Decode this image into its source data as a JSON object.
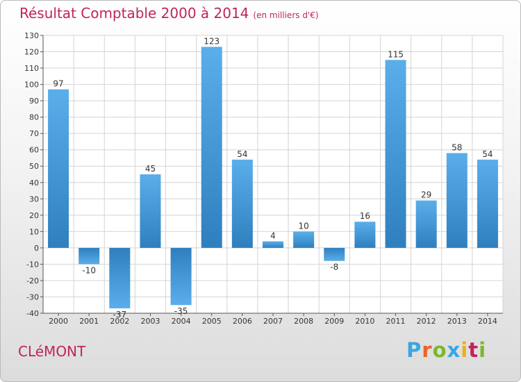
{
  "title": "Résultat Comptable 2000 à 2014",
  "subtitle": "(en milliers d'€)",
  "place": "CLéMONT",
  "logo": {
    "letters": [
      "P",
      "r",
      "o",
      "x",
      "i",
      "t",
      "i"
    ],
    "colors": [
      "#3aa7e0",
      "#e8642c",
      "#7ab82e",
      "#3aa7e0",
      "#e8b020",
      "#c0245c",
      "#7ab82e"
    ]
  },
  "chart_data": {
    "type": "bar",
    "categories": [
      "2000",
      "2001",
      "2002",
      "2003",
      "2004",
      "2005",
      "2006",
      "2007",
      "2008",
      "2009",
      "2010",
      "2011",
      "2012",
      "2013",
      "2014"
    ],
    "values": [
      97,
      -10,
      -37,
      45,
      -35,
      123,
      54,
      4,
      10,
      -8,
      16,
      115,
      29,
      58,
      54
    ],
    "ylim": [
      -40,
      130
    ],
    "yticks": [
      -40,
      -30,
      -20,
      -10,
      0,
      10,
      20,
      30,
      40,
      50,
      60,
      70,
      80,
      90,
      100,
      110,
      120,
      130
    ],
    "grid": true,
    "colors": {
      "bar_light": "#5aaeea",
      "bar_dark": "#2f7fbf",
      "grid": "#d4d4d4"
    }
  }
}
